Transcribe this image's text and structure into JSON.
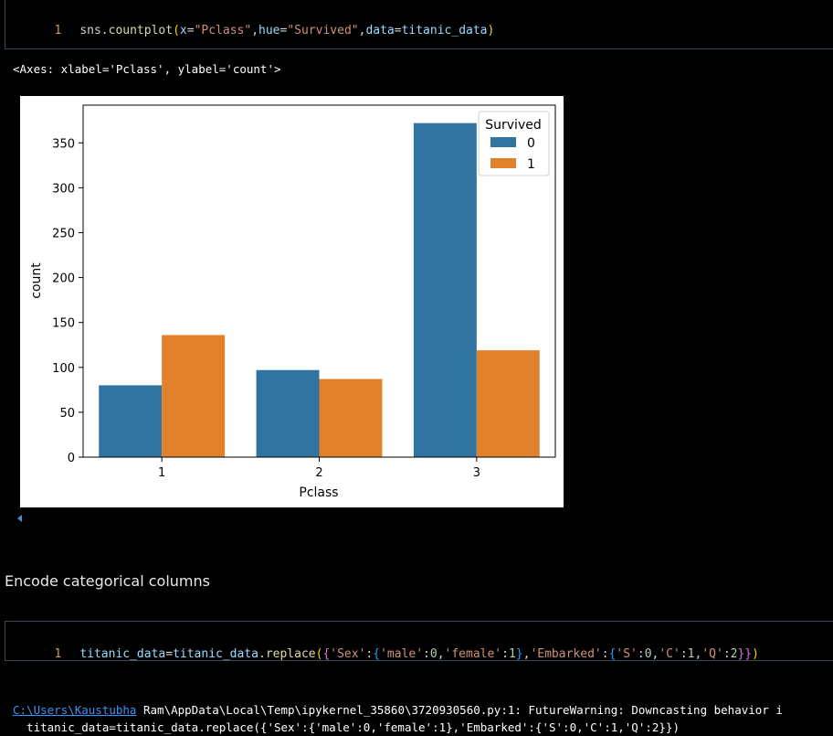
{
  "cell1": {
    "line_number": "1",
    "code": {
      "obj": "sns",
      "dot": ".",
      "func": "countplot",
      "open": "(",
      "p1": "x",
      "eq1": "=",
      "v1": "\"Pclass\"",
      "c1": ",",
      "p2": "hue",
      "eq2": "=",
      "v2": "\"Survived\"",
      "c2": ",",
      "p3": "data",
      "eq3": "=",
      "v3": "titanic_data",
      "close": ")"
    }
  },
  "output_repr": "<Axes: xlabel='Pclass', ylabel='count'>",
  "chart_data": {
    "type": "bar",
    "categories": [
      "1",
      "2",
      "3"
    ],
    "series": [
      {
        "name": "0",
        "values": [
          80,
          97,
          372
        ],
        "color": "#3274a1"
      },
      {
        "name": "1",
        "values": [
          136,
          87,
          119
        ],
        "color": "#e1812c"
      }
    ],
    "xlabel": "Pclass",
    "ylabel": "count",
    "ylim": [
      0,
      392
    ],
    "yticks": [
      0,
      50,
      100,
      150,
      200,
      250,
      300,
      350
    ],
    "legend_title": "Survived",
    "legend_position": "top-right",
    "grid": false
  },
  "markdown_heading": "Encode categorical columns",
  "cell2": {
    "line_number": "1",
    "code": {
      "a": "titanic_data",
      "eq": "=",
      "b": "titanic_data",
      "dot": ".",
      "func": "replace",
      "open": "(",
      "br1": "{",
      "k1": "'Sex'",
      "col1": ":",
      "br2": "{",
      "k2": "'male'",
      "col2": ":",
      "n1": "0",
      "cm1": ",",
      "k3": "'female'",
      "col3": ":",
      "n2": "1",
      "br3": "}",
      "cm2": ",",
      "k4": "'Embarked'",
      "col4": ":",
      "br4": "{",
      "k5": "'S'",
      "col5": ":",
      "n3": "0",
      "cm3": ",",
      "k6": "'C'",
      "col6": ":",
      "n4": "1",
      "cm4": ",",
      "k7": "'Q'",
      "col7": ":",
      "n5": "2",
      "br5": "}}",
      "close": ")"
    }
  },
  "warning": {
    "path": "C:\\Users\\Kaustubha",
    "rest": " Ram\\AppData\\Local\\Temp\\ipykernel_35860\\3720930560.py:1: FutureWarning: Downcasting behavior i",
    "line2": "  titanic_data=titanic_data.replace({'Sex':{'male':0,'female':1},'Embarked':{'S':0,'C':1,'Q':2}})"
  }
}
